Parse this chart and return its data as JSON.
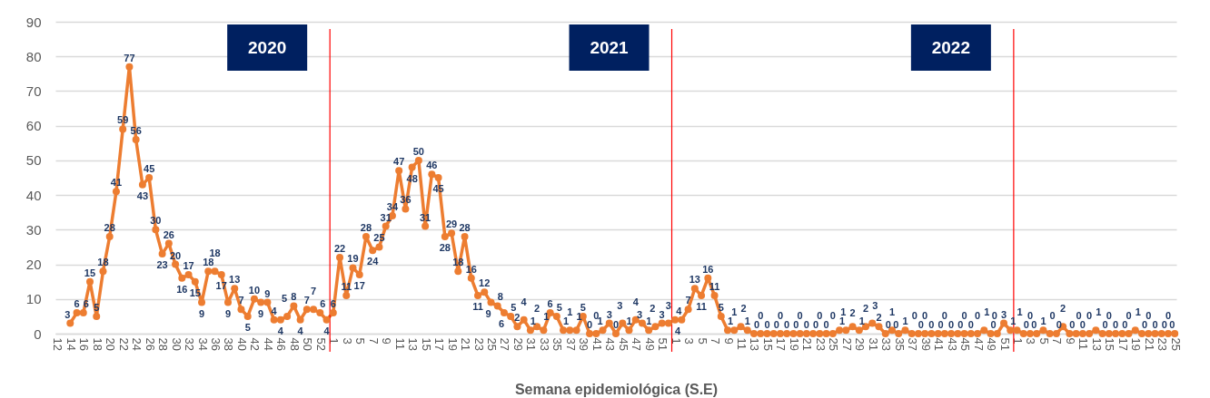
{
  "chart_data": {
    "type": "line",
    "xlabel": "Semana epidemiológica (S.E)",
    "annotations": [
      "2020",
      "2021",
      "2022"
    ],
    "categories": [
      "12",
      null,
      "14",
      null,
      "16",
      null,
      "18",
      null,
      "20",
      null,
      "22",
      null,
      "24",
      null,
      "26",
      null,
      "28",
      null,
      "30",
      null,
      "32",
      null,
      "34",
      null,
      "36",
      null,
      "38",
      null,
      "40",
      null,
      "42",
      null,
      "44",
      null,
      "46",
      null,
      "48",
      null,
      "50",
      null,
      "52",
      null,
      "1",
      null,
      "3",
      null,
      "5",
      null,
      "7",
      null,
      "9",
      null,
      "11",
      null,
      "13",
      null,
      "15",
      null,
      "17",
      null,
      "19",
      null,
      "21",
      null,
      "23",
      null,
      "25",
      null,
      "27",
      null,
      "29",
      null,
      "31",
      null,
      "33",
      null,
      "35",
      null,
      "37",
      null,
      "39",
      null,
      "41",
      null,
      "43",
      null,
      "45",
      null,
      "47",
      null,
      "49",
      null,
      "51",
      null,
      "1",
      null,
      "3",
      null,
      "5",
      null,
      "7",
      null,
      "9",
      null,
      "11",
      null,
      "13",
      null,
      "15",
      null,
      "17",
      null,
      "19",
      null,
      "21",
      null,
      "23",
      null,
      "25",
      null,
      "27",
      null,
      "29",
      null,
      "31",
      null,
      "33",
      null,
      "35",
      null,
      "37",
      null,
      "39",
      null,
      "41",
      null,
      "43",
      null,
      "45",
      null,
      "47",
      null,
      "49",
      null,
      "51",
      null,
      "1",
      null,
      "3",
      null,
      "5",
      null,
      "7",
      null,
      "9",
      null,
      "11",
      null,
      "13",
      null,
      "15",
      null,
      "17",
      null,
      "19",
      null,
      "21",
      null,
      "23",
      null,
      "25"
    ],
    "series": [
      {
        "color": "#ed7d31",
        "values": [
          null,
          null,
          3,
          6,
          6,
          15,
          5,
          18,
          28,
          41,
          59,
          77,
          56,
          43,
          45,
          30,
          23,
          26,
          20,
          16,
          17,
          15,
          9,
          18,
          18,
          17,
          9,
          13,
          7,
          5,
          10,
          9,
          9,
          4,
          4,
          5,
          8,
          4,
          7,
          7,
          6,
          4,
          6,
          22,
          11,
          19,
          17,
          28,
          24,
          25,
          31,
          34,
          47,
          36,
          48,
          50,
          31,
          46,
          45,
          28,
          29,
          18,
          28,
          16,
          11,
          12,
          9,
          8,
          6,
          5,
          2,
          4,
          1,
          2,
          1,
          6,
          5,
          1,
          1,
          1,
          5,
          0,
          0,
          1,
          3,
          0,
          3,
          1,
          4,
          3,
          1,
          2,
          3,
          3,
          4,
          4,
          7,
          13,
          11,
          16,
          11,
          5,
          1,
          1,
          2,
          1,
          0,
          0,
          0,
          0,
          0,
          0,
          0,
          0,
          0,
          0,
          0,
          0,
          0,
          1,
          1,
          2,
          1,
          2,
          3,
          2,
          0,
          1,
          0,
          1,
          0,
          0,
          0,
          0,
          0,
          0,
          0,
          0,
          0,
          0,
          0,
          1,
          0,
          0,
          3,
          1,
          1,
          0,
          0,
          0,
          1,
          0,
          0,
          2,
          0,
          0,
          0,
          0,
          1,
          0,
          0,
          0,
          0,
          0,
          1,
          0,
          0,
          0,
          0,
          0,
          0
        ]
      }
    ],
    "ylim": [
      0,
      90
    ],
    "yticks": [
      0,
      10,
      20,
      30,
      40,
      50,
      60,
      70,
      80,
      90
    ],
    "grid": "y",
    "marker": "circle",
    "line_style": "solid",
    "data_labels": true
  }
}
